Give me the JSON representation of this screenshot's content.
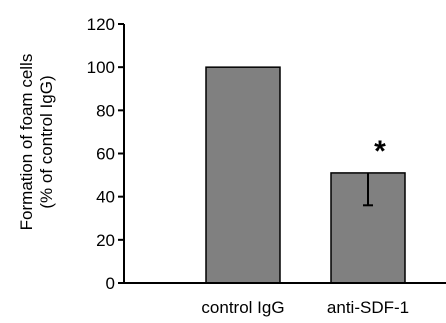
{
  "chart_data": {
    "type": "bar",
    "categories": [
      "control IgG",
      "anti-SDF-1"
    ],
    "values": [
      100,
      51
    ],
    "error_low": [
      0,
      15
    ],
    "error_high": [
      0,
      0
    ],
    "annotations": [
      "",
      "*"
    ],
    "ylabel_lines": [
      "Formation of foam cells",
      "(% of control IgG)"
    ],
    "ylim": [
      0,
      120
    ],
    "yticks": [
      0,
      20,
      40,
      60,
      80,
      100,
      120
    ],
    "bar_color": "#808080",
    "grid": false
  }
}
